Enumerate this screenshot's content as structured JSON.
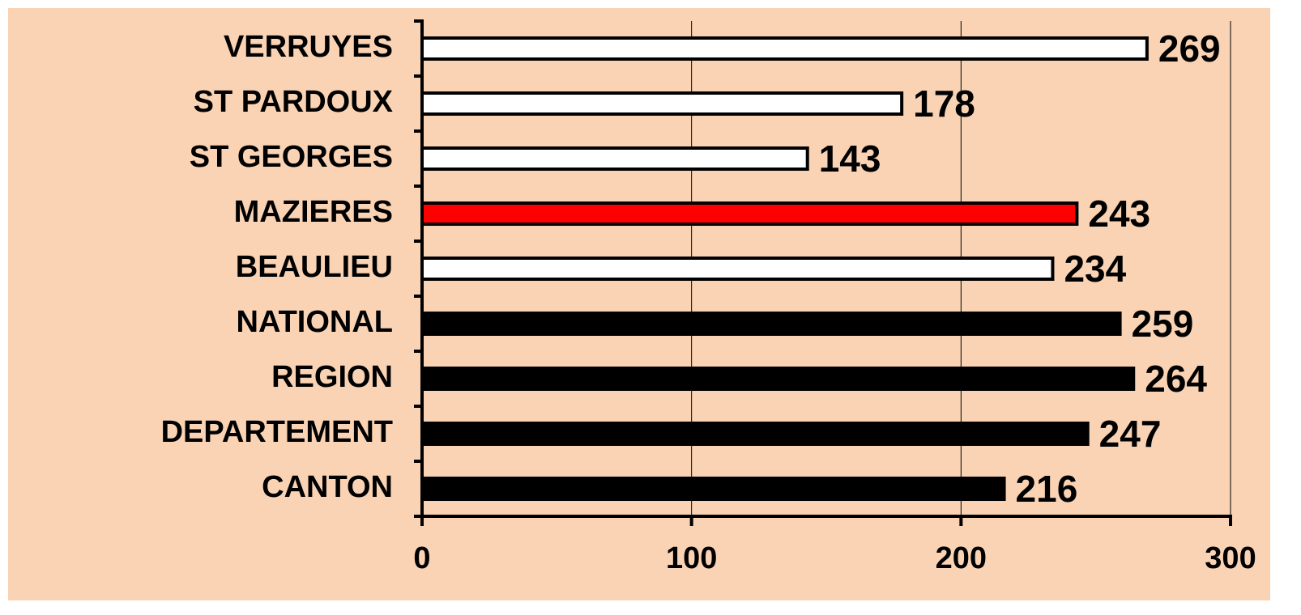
{
  "chart_data": {
    "type": "bar",
    "orientation": "horizontal",
    "categories": [
      "VERRUYES",
      "ST PARDOUX",
      "ST GEORGES",
      "MAZIERES",
      "BEAULIEU",
      "NATIONAL",
      "REGION",
      "DEPARTEMENT",
      "CANTON"
    ],
    "values": [
      269,
      178,
      143,
      243,
      234,
      259,
      264,
      247,
      216
    ],
    "colors": [
      "#ffffff",
      "#ffffff",
      "#ffffff",
      "#ff0000",
      "#ffffff",
      "#000000",
      "#000000",
      "#000000",
      "#000000"
    ],
    "xlim": [
      0,
      300
    ],
    "xticks": [
      0,
      100,
      200,
      300
    ],
    "grid": true
  }
}
